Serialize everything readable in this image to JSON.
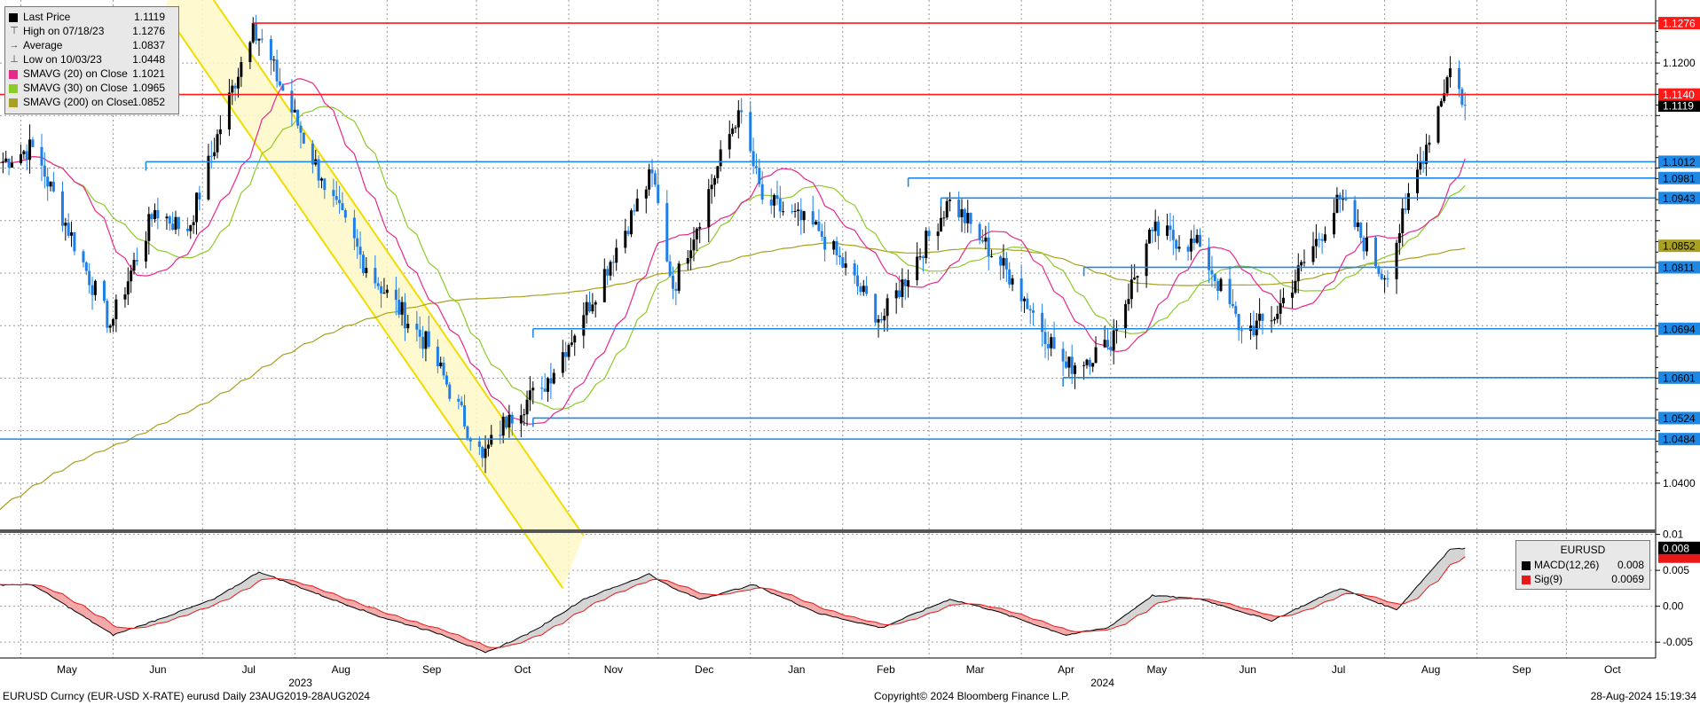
{
  "colors": {
    "up": "#000000",
    "down": "#1e7fe8",
    "sma20": "#e8288a",
    "sma30": "#8ccc28",
    "sma200": "#a8a020",
    "red_level": "#ff1a1a",
    "blue_level": "#1e88e5",
    "channel_fill": "#fff8c8",
    "channel_edge": "#f0dc00",
    "macd": "#000000",
    "signal": "#e81818"
  },
  "legend": {
    "items": [
      {
        "glyph": "square",
        "color": "#000000",
        "label": "Last Price",
        "value": "1.1119"
      },
      {
        "glyph": "high",
        "color": "#444444",
        "label": "High on 07/18/23",
        "value": "1.1276"
      },
      {
        "glyph": "avg",
        "color": "#444444",
        "label": "Average",
        "value": "1.0837"
      },
      {
        "glyph": "low",
        "color": "#444444",
        "label": "Low on 10/03/23",
        "value": "1.0448"
      },
      {
        "glyph": "square",
        "color": "#e8288a",
        "label": "SMAVG (20)  on Close",
        "value": "1.1021"
      },
      {
        "glyph": "square",
        "color": "#8ccc28",
        "label": "SMAVG (30)  on Close",
        "value": "1.0965"
      },
      {
        "glyph": "square",
        "color": "#a8a020",
        "label": "SMAVG (200)  on Close",
        "value": "1.0852"
      }
    ]
  },
  "macd_legend": {
    "title": "EURUSD",
    "items": [
      {
        "color": "#000000",
        "label": "MACD(12,26)",
        "value": "0.008"
      },
      {
        "color": "#e81818",
        "label": "Sig(9)",
        "value": "0.0069"
      }
    ]
  },
  "footer": {
    "left": "EURUSD Curncy (EUR-USD X-RATE) eurusd  Daily 23AUG2019-28AUG2024",
    "center": "Copyright© 2024 Bloomberg Finance L.P.",
    "right": "28-Aug-2024 15:19:34"
  },
  "chart_data": [
    {
      "type": "candlestick",
      "instrument": "EURUSD",
      "x_axis": {
        "months": [
          "May",
          "Jun",
          "Jul",
          "Aug",
          "Sep",
          "Oct",
          "Nov",
          "Dec",
          "Jan",
          "Feb",
          "Mar",
          "Apr",
          "May",
          "Jun",
          "Jul",
          "Aug",
          "Sep",
          "Oct"
        ],
        "years": [
          "2023",
          "2024"
        ],
        "range": [
          "2023-04-24",
          "2024-10-31"
        ]
      },
      "y_axis": {
        "ticks": [
          "1.1200",
          "1.0400"
        ],
        "ylim": [
          1.0312,
          1.132
        ],
        "grid": true
      },
      "price_waypoints": [
        [
          "2023-04-24",
          1.101
        ],
        [
          "2023-05-05",
          1.104
        ],
        [
          "2023-05-31",
          1.07
        ],
        [
          "2023-06-15",
          1.092
        ],
        [
          "2023-06-26",
          1.088
        ],
        [
          "2023-07-18",
          1.1276
        ],
        [
          "2023-08-10",
          1.098
        ],
        [
          "2023-08-25",
          1.081
        ],
        [
          "2023-09-15",
          1.066
        ],
        [
          "2023-10-03",
          1.0448
        ],
        [
          "2023-10-12",
          1.053
        ],
        [
          "2023-10-23",
          1.058
        ],
        [
          "2023-11-06",
          1.072
        ],
        [
          "2023-11-29",
          1.099
        ],
        [
          "2023-12-06",
          1.077
        ],
        [
          "2023-12-28",
          1.111
        ],
        [
          "2024-01-05",
          1.094
        ],
        [
          "2024-01-24",
          1.088
        ],
        [
          "2024-02-14",
          1.071
        ],
        [
          "2024-03-08",
          1.094
        ],
        [
          "2024-03-19",
          1.086
        ],
        [
          "2024-03-29",
          1.079
        ],
        [
          "2024-04-16",
          1.062
        ],
        [
          "2024-04-30",
          1.066
        ],
        [
          "2024-05-15",
          1.088
        ],
        [
          "2024-05-31",
          1.085
        ],
        [
          "2024-06-14",
          1.069
        ],
        [
          "2024-06-24",
          1.071
        ],
        [
          "2024-07-17",
          1.094
        ],
        [
          "2024-08-01",
          1.079
        ],
        [
          "2024-08-08",
          1.092
        ],
        [
          "2024-08-23",
          1.119
        ],
        [
          "2024-08-28",
          1.1119
        ]
      ],
      "series": [
        {
          "name": "SMAVG (20)  on Close",
          "last": 1.1021
        },
        {
          "name": "SMAVG (30)  on Close",
          "last": 1.0965
        },
        {
          "name": "SMAVG (200)  on Close",
          "last": 1.0852
        }
      ],
      "levels": {
        "red": [
          {
            "value": 1.1276,
            "label": "1.1276",
            "from": "2023-07-18"
          },
          {
            "value": 1.114,
            "label": "1.1140",
            "from": "2023-04-24"
          }
        ],
        "blue": [
          {
            "value": 1.1012,
            "label": "1.1012",
            "from": "2023-06-12"
          },
          {
            "value": 1.0981,
            "label": "1.0981",
            "from": "2024-02-23"
          },
          {
            "value": 1.0943,
            "label": "1.0943",
            "from": "2024-03-05"
          },
          {
            "value": 1.0811,
            "label": "1.0811",
            "from": "2024-04-22"
          },
          {
            "value": 1.0694,
            "label": "1.0694",
            "from": "2023-10-20"
          },
          {
            "value": 1.0601,
            "label": "1.0601",
            "from": "2024-04-15"
          },
          {
            "value": 1.0524,
            "label": "1.0524",
            "from": "2023-10-20"
          },
          {
            "value": 1.0484,
            "label": "1.0484",
            "from": "2023-04-24"
          }
        ]
      },
      "last_price_label": "1.1119",
      "sma200_label": "1.0852",
      "channel": {
        "upper": [
          [
            "2023-06-25",
            1.14
          ],
          [
            "2023-11-06",
            1.03
          ]
        ],
        "lower": [
          [
            "2023-06-18",
            1.13
          ],
          [
            "2023-10-30",
            1.02
          ]
        ]
      }
    },
    {
      "type": "line",
      "name": "MACD panel",
      "y_axis": {
        "ticks": [
          "0.01",
          "0.005",
          "0.00",
          "-0.005"
        ],
        "ylim": [
          -0.0072,
          0.0102
        ]
      },
      "macd_waypoints": [
        [
          "2023-04-24",
          0.003
        ],
        [
          "2023-05-05",
          0.003
        ],
        [
          "2023-06-01",
          -0.004
        ],
        [
          "2023-06-15",
          -0.002
        ],
        [
          "2023-07-05",
          0.001
        ],
        [
          "2023-07-20",
          0.0048
        ],
        [
          "2023-08-10",
          0.0015
        ],
        [
          "2023-08-30",
          -0.0015
        ],
        [
          "2023-09-20",
          -0.004
        ],
        [
          "2023-10-04",
          -0.0065
        ],
        [
          "2023-10-20",
          -0.0035
        ],
        [
          "2023-11-06",
          0.001
        ],
        [
          "2023-11-28",
          0.0045
        ],
        [
          "2023-12-06",
          0.0025
        ],
        [
          "2023-12-15",
          0.001
        ],
        [
          "2024-01-02",
          0.003
        ],
        [
          "2024-01-24",
          -0.001
        ],
        [
          "2024-02-14",
          -0.003
        ],
        [
          "2024-03-08",
          0.001
        ],
        [
          "2024-03-22",
          -0.0005
        ],
        [
          "2024-04-16",
          -0.004
        ],
        [
          "2024-04-30",
          -0.003
        ],
        [
          "2024-05-15",
          0.0015
        ],
        [
          "2024-05-31",
          0.001
        ],
        [
          "2024-06-24",
          -0.002
        ],
        [
          "2024-07-17",
          0.0025
        ],
        [
          "2024-08-05",
          -0.0005
        ],
        [
          "2024-08-23",
          0.008
        ],
        [
          "2024-08-28",
          0.008
        ]
      ],
      "value_label": "0.008"
    }
  ]
}
